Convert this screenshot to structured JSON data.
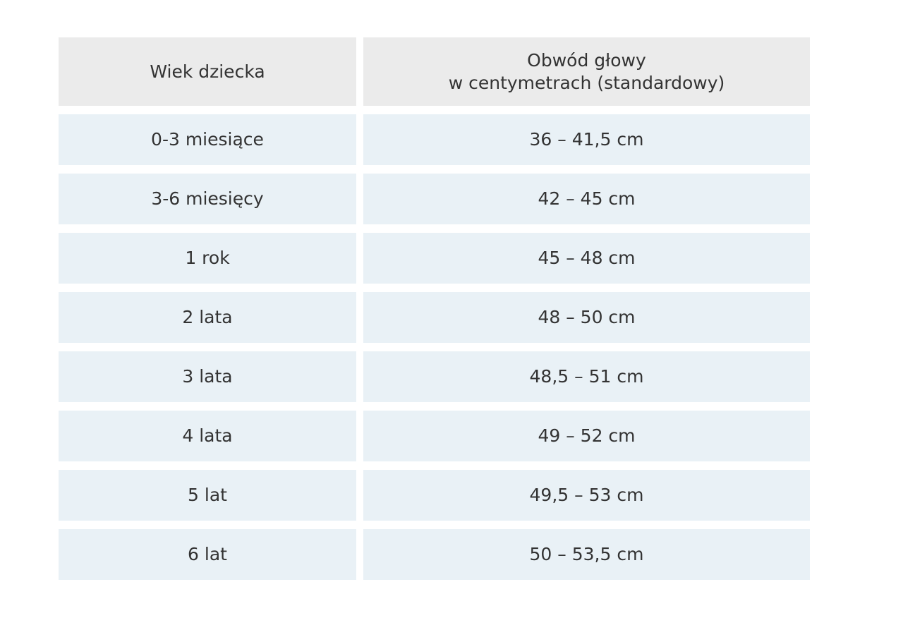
{
  "table": {
    "headers": [
      "Wiek dziecka",
      "Obwód głowy\nw centymetrach (standardowy)"
    ],
    "rows": [
      [
        "0-3 miesiące",
        "36 – 41,5 cm"
      ],
      [
        "3-6 miesięcy",
        "42 – 45 cm"
      ],
      [
        "1 rok",
        "45 – 48 cm"
      ],
      [
        "2 lata",
        "48 – 50 cm"
      ],
      [
        "3 lata",
        "48,5 – 51 cm"
      ],
      [
        "4 lata",
        "49 – 52 cm"
      ],
      [
        "5 lat",
        "49,5 – 53 cm"
      ],
      [
        "6 lat",
        "50 – 53,5 cm"
      ]
    ]
  },
  "colors": {
    "header_bg": "#ebebeb",
    "row_bg": "#e9f1f6",
    "text": "#333333"
  }
}
